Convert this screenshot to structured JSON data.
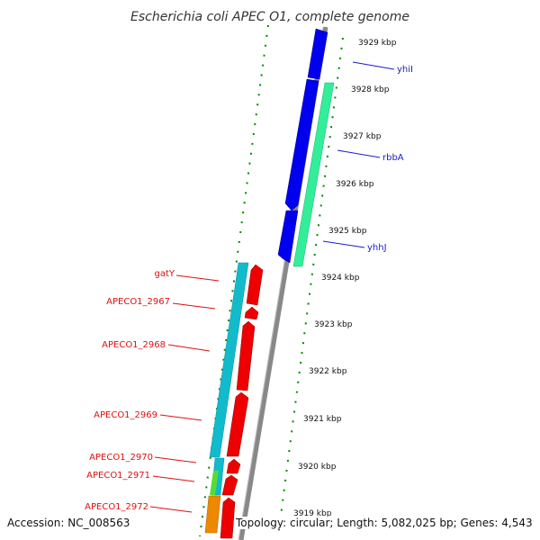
{
  "title": "Escherichia coli APEC O1, complete genome",
  "accession": "Accession: NC_008563",
  "topology": "Topology: circular; Length: 5,082,025 bp; Genes: 4,543",
  "ticks": [
    {
      "kbp": 3929,
      "label": "3929 kbp"
    },
    {
      "kbp": 3928,
      "label": "3928 kbp"
    },
    {
      "kbp": 3927,
      "label": "3927 kbp"
    },
    {
      "kbp": 3926,
      "label": "3926 kbp"
    },
    {
      "kbp": 3925,
      "label": "3925 kbp"
    },
    {
      "kbp": 3924,
      "label": "3924 kbp"
    },
    {
      "kbp": 3923,
      "label": "3923 kbp"
    },
    {
      "kbp": 3922,
      "label": "3922 kbp"
    },
    {
      "kbp": 3921,
      "label": "3921 kbp"
    },
    {
      "kbp": 3920,
      "label": "3920 kbp"
    },
    {
      "kbp": 3919,
      "label": "3919 kbp"
    }
  ],
  "forward_genes": [
    {
      "name": "yhiI",
      "color": "#0000ee",
      "label_color": "#1a1acc"
    },
    {
      "name": "rbbA",
      "color": "#0000ee",
      "label_color": "#1a1acc"
    },
    {
      "name": "yhhJ",
      "color": "#0000ee",
      "label_color": "#1a1acc"
    }
  ],
  "reverse_genes": [
    {
      "name": "gatY",
      "color": "#ee0000",
      "label_color": "#dd1111"
    },
    {
      "name": "APECO1_2967",
      "color": "#ee0000",
      "label_color": "#dd1111"
    },
    {
      "name": "APECO1_2968",
      "color": "#ee0000",
      "label_color": "#dd1111"
    },
    {
      "name": "APECO1_2969",
      "color": "#ee0000",
      "label_color": "#dd1111"
    },
    {
      "name": "APECO1_2970",
      "color": "#ee0000",
      "label_color": "#dd1111"
    },
    {
      "name": "APECO1_2971",
      "color": "#ee0000",
      "label_color": "#dd1111"
    },
    {
      "name": "APECO1_2972",
      "color": "#ee0000",
      "label_color": "#dd1111"
    }
  ],
  "colors": {
    "backbone": "#888888",
    "tick": "#008800",
    "cog_cyan": "#11bbcc",
    "cog_teal": "#33ee99",
    "cog_green": "#55dd33",
    "cog_orange": "#ee8800"
  }
}
